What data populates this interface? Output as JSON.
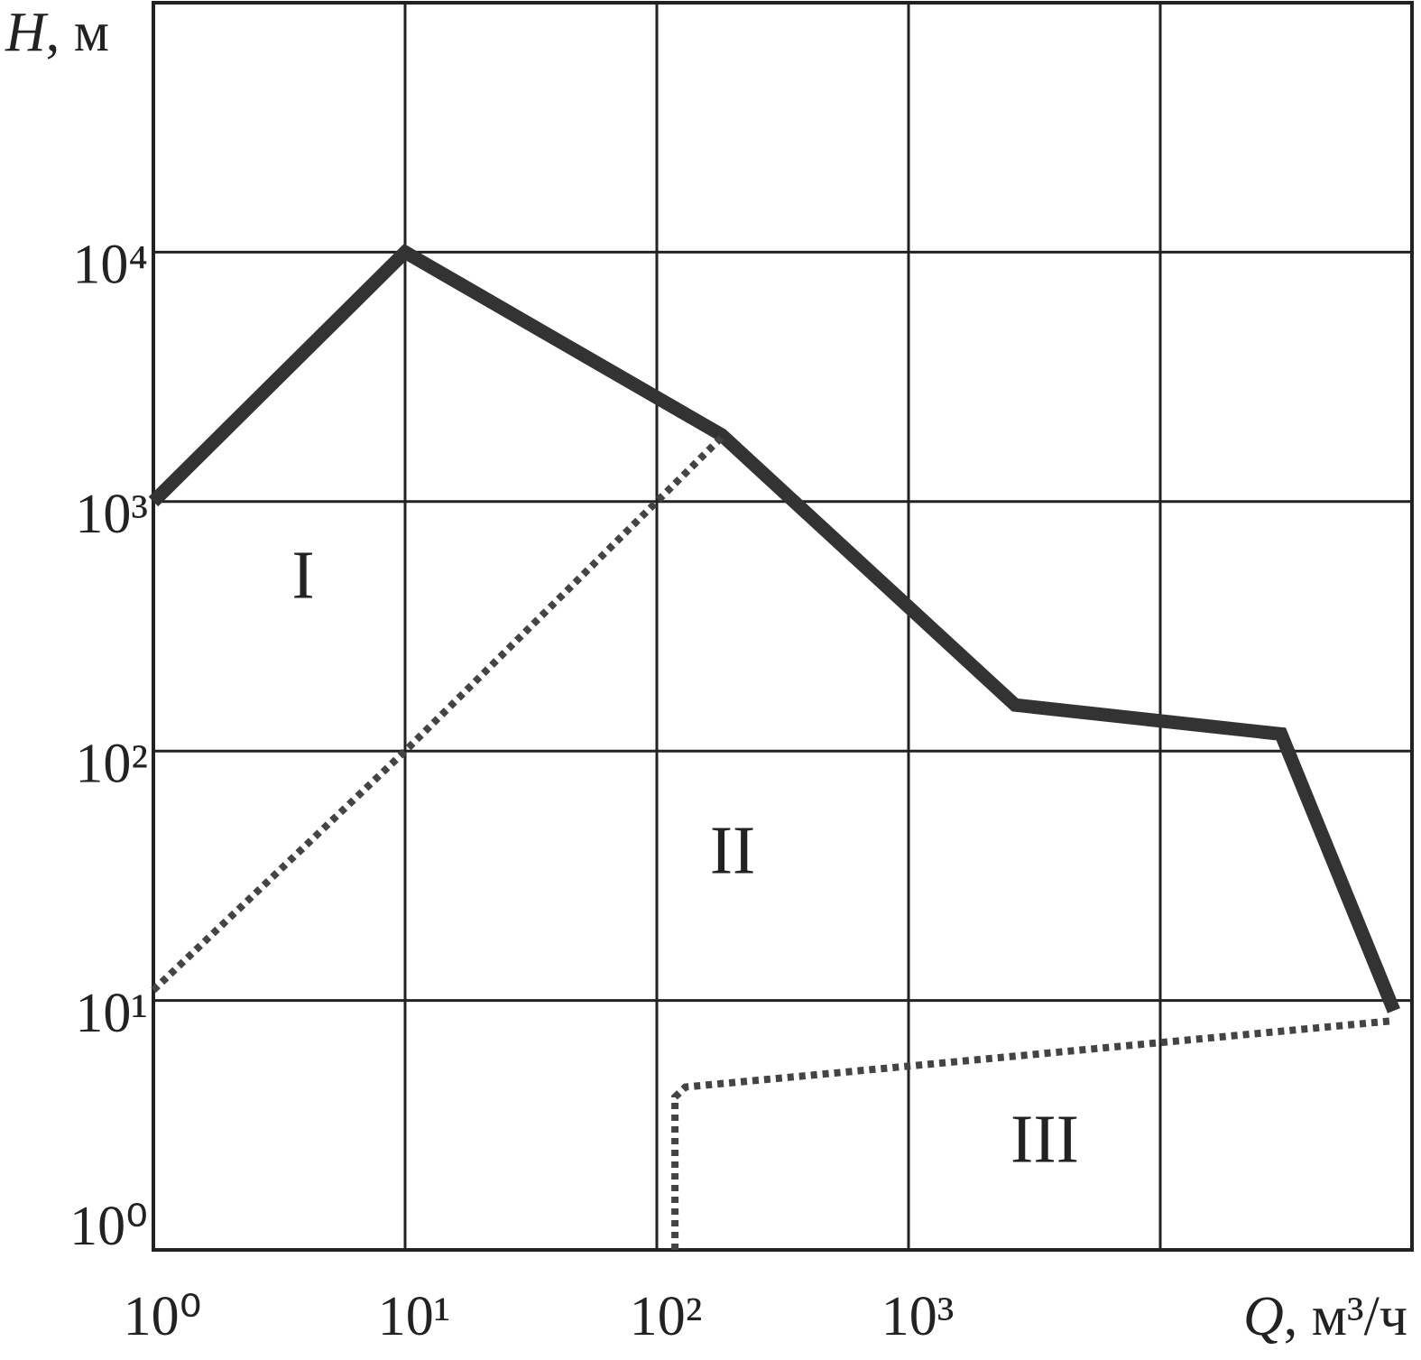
{
  "chart_data": {
    "type": "line",
    "x_label": "Q, м³/ч",
    "y_label": "H, м",
    "log_x": true,
    "log_y": true,
    "grid": true,
    "xlim": [
      1,
      100000
    ],
    "ylim": [
      1,
      100000
    ],
    "xticks": [
      {
        "value": 1,
        "label": "10⁰"
      },
      {
        "value": 10,
        "label": "10¹"
      },
      {
        "value": 100,
        "label": "10²"
      },
      {
        "value": 1000,
        "label": "10³"
      },
      {
        "value": 10000,
        "label": null
      }
    ],
    "yticks": [
      {
        "value": 1,
        "label": "10⁰"
      },
      {
        "value": 10,
        "label": "10¹"
      },
      {
        "value": 100,
        "label": "10²"
      },
      {
        "value": 1000,
        "label": "10³"
      },
      {
        "value": 10000,
        "label": "10⁴"
      }
    ],
    "series": [
      {
        "style": "solid",
        "color": "#333333",
        "x": [
          1,
          10,
          181,
          2650,
          30200,
          84800
        ],
        "values": [
          1000,
          10000,
          1850,
          153,
          117,
          9.1
        ]
      },
      {
        "style": "dotted",
        "color": "#444444",
        "x": [
          1,
          10,
          180
        ],
        "values": [
          11,
          100,
          1800
        ]
      },
      {
        "style": "dotted",
        "color": "#444444",
        "x": [
          118,
          118,
          130,
          85000
        ],
        "values": [
          1,
          4.1,
          4.5,
          8.3
        ]
      }
    ],
    "annotations": [
      "I",
      "II",
      "III"
    ]
  }
}
